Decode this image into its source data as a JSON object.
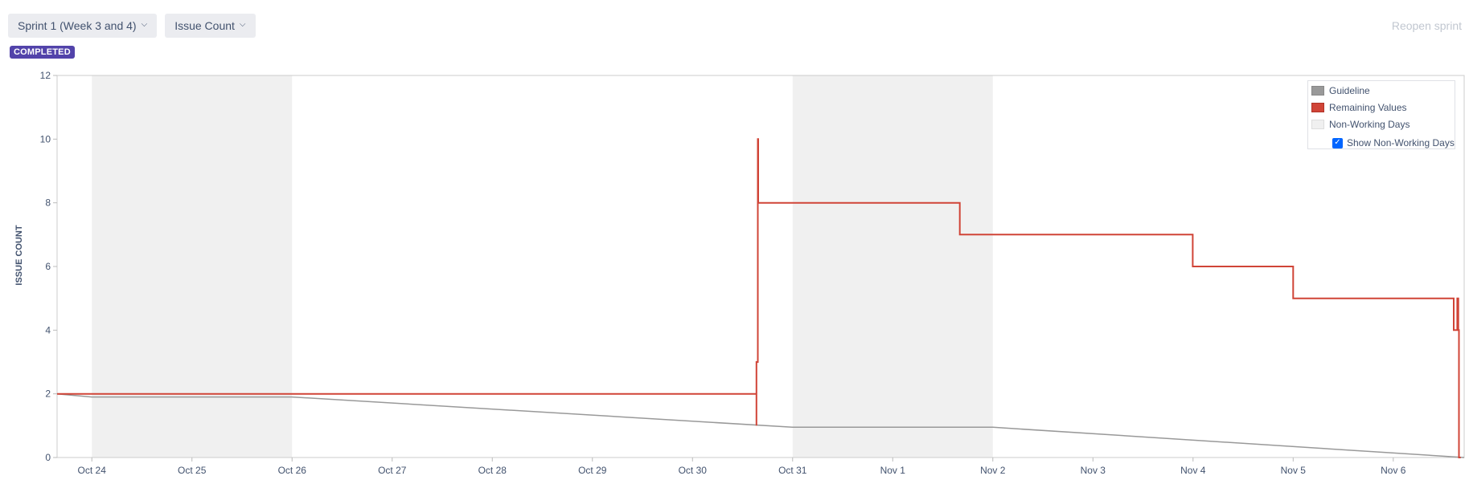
{
  "toolbar": {
    "sprint_label": "Sprint 1 (Week 3 and 4)",
    "measure_label": "Issue Count",
    "status_badge": "COMPLETED",
    "reopen_label": "Reopen sprint",
    "chevron_icon": "chevron-down-icon"
  },
  "legend": {
    "items": [
      {
        "label": "Guideline",
        "color": "#999999"
      },
      {
        "label": "Remaining Values",
        "color": "#d04437"
      },
      {
        "label": "Non-Working Days",
        "color": "#f0f0f0"
      }
    ],
    "checkbox_label": "Show Non-Working Days",
    "checkbox_checked": true
  },
  "chart_data": {
    "type": "line",
    "title": "",
    "xlabel": "",
    "ylabel": "ISSUE COUNT",
    "ylim": [
      0,
      12
    ],
    "y_ticks": [
      0,
      2,
      4,
      6,
      8,
      10,
      12
    ],
    "x_range": [
      "2023-10-23T15:40",
      "2023-11-06T17:00"
    ],
    "x_ticks": [
      {
        "date": "2023-10-24",
        "label": "Oct 24"
      },
      {
        "date": "2023-10-25",
        "label": "Oct 25"
      },
      {
        "date": "2023-10-26",
        "label": "Oct 26"
      },
      {
        "date": "2023-10-27",
        "label": "Oct 27"
      },
      {
        "date": "2023-10-28",
        "label": "Oct 28"
      },
      {
        "date": "2023-10-29",
        "label": "Oct 29"
      },
      {
        "date": "2023-10-30",
        "label": "Oct 30"
      },
      {
        "date": "2023-10-31",
        "label": "Oct 31"
      },
      {
        "date": "2023-11-01",
        "label": "Nov 1"
      },
      {
        "date": "2023-11-02",
        "label": "Nov 2"
      },
      {
        "date": "2023-11-03",
        "label": "Nov 3"
      },
      {
        "date": "2023-11-04",
        "label": "Nov 4"
      },
      {
        "date": "2023-11-05",
        "label": "Nov 5"
      },
      {
        "date": "2023-11-06",
        "label": "Nov 6"
      }
    ],
    "non_working_days": [
      {
        "start": "2023-10-24",
        "end": "2023-10-26"
      },
      {
        "start": "2023-10-31",
        "end": "2023-11-02"
      }
    ],
    "grid": false,
    "legend_position": "top-right",
    "series": [
      {
        "name": "Guideline",
        "color": "#999999",
        "points": [
          {
            "x": "2023-10-23T15:40",
            "y": 2
          },
          {
            "x": "2023-10-24T00:00",
            "y": 1.9
          },
          {
            "x": "2023-10-26T00:00",
            "y": 1.9
          },
          {
            "x": "2023-10-31T00:00",
            "y": 0.95
          },
          {
            "x": "2023-11-02T00:00",
            "y": 0.95
          },
          {
            "x": "2023-11-06T17:00",
            "y": 0
          }
        ]
      },
      {
        "name": "Remaining Values",
        "color": "#d04437",
        "step": true,
        "points": [
          {
            "x": "2023-10-23T15:40",
            "y": 2
          },
          {
            "x": "2023-10-30T15:20",
            "y": 2
          },
          {
            "x": "2023-10-30T15:20",
            "y": 1
          },
          {
            "x": "2023-10-30T15:20",
            "y": 3
          },
          {
            "x": "2023-10-30T15:40",
            "y": 3
          },
          {
            "x": "2023-10-30T15:40",
            "y": 4
          },
          {
            "x": "2023-10-30T15:40",
            "y": 10
          },
          {
            "x": "2023-10-30T15:45",
            "y": 10
          },
          {
            "x": "2023-10-30T15:45",
            "y": 8
          },
          {
            "x": "2023-11-01T16:05",
            "y": 8
          },
          {
            "x": "2023-11-01T16:05",
            "y": 7
          },
          {
            "x": "2023-11-03T23:55",
            "y": 7
          },
          {
            "x": "2023-11-03T23:55",
            "y": 6
          },
          {
            "x": "2023-11-05T00:00",
            "y": 6
          },
          {
            "x": "2023-11-05T00:00",
            "y": 5
          },
          {
            "x": "2023-11-06T14:30",
            "y": 5
          },
          {
            "x": "2023-11-06T14:30",
            "y": 4
          },
          {
            "x": "2023-11-06T15:20",
            "y": 4
          },
          {
            "x": "2023-11-06T15:20",
            "y": 5
          },
          {
            "x": "2023-11-06T15:35",
            "y": 5
          },
          {
            "x": "2023-11-06T15:35",
            "y": 4
          },
          {
            "x": "2023-11-06T15:45",
            "y": 4
          },
          {
            "x": "2023-11-06T15:45",
            "y": 0
          },
          {
            "x": "2023-11-06T16:10",
            "y": 0
          }
        ]
      }
    ]
  }
}
